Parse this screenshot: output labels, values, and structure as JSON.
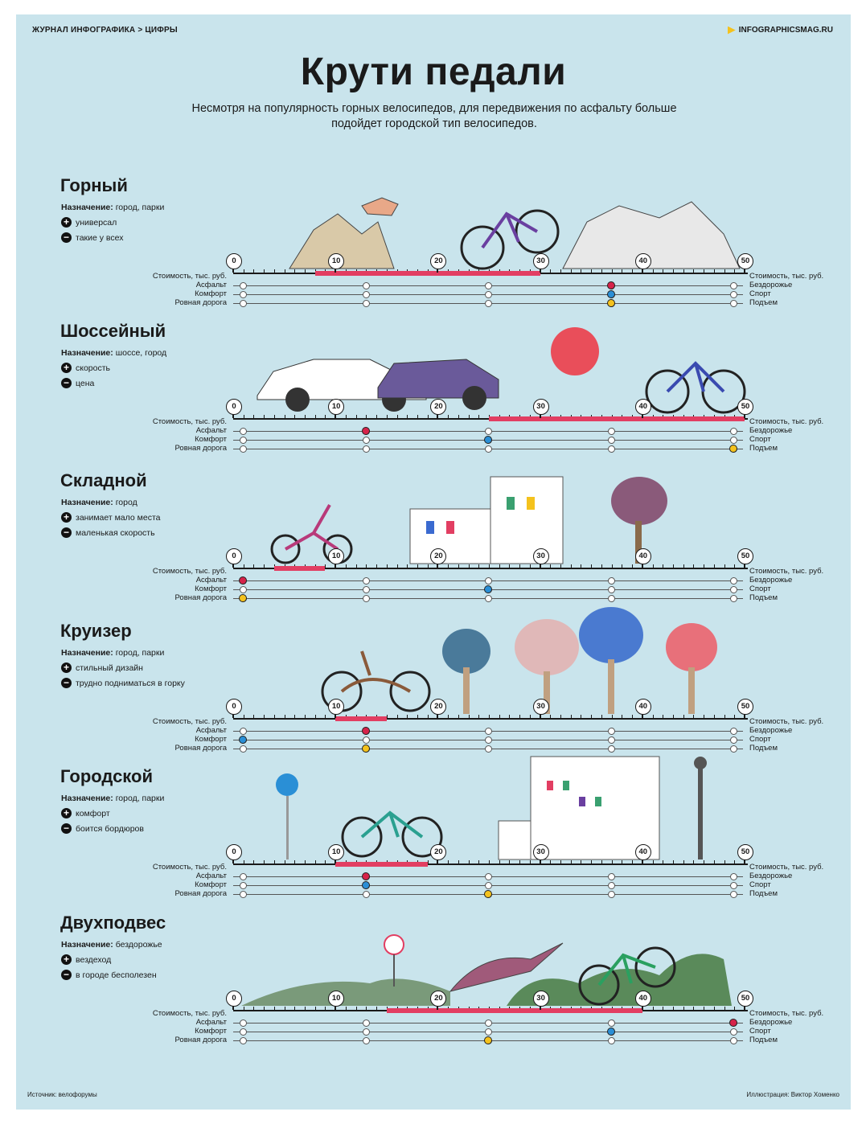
{
  "header": {
    "breadcrumb": "ЖУРНАЛ ИНФОГРАФИКА > ЦИФРЫ",
    "site": "INFOGRAPHICSMAG.RU",
    "title": "Крути педали",
    "subtitle": "Несмотря на популярность горных велосипедов, для передвижения по асфальту больше подойдет городской тип велосипедов."
  },
  "labels": {
    "cost": "Стоимость, тыс. руб.",
    "purpose_prefix": "Назначение:",
    "left_axis": [
      "Асфальт",
      "Комфорт",
      "Ровная дорога"
    ],
    "right_axis": [
      "Бездорожье",
      "Спорт",
      "Подъем"
    ],
    "ticks": [
      "0",
      "10",
      "20",
      "30",
      "40",
      "50"
    ]
  },
  "colors": {
    "background": "#c9e4ec",
    "range": "#e23e62",
    "asphalt_marker": "#d6234a",
    "comfort_marker": "#2a8fd6",
    "road_marker": "#f4c21d"
  },
  "sections": [
    {
      "name": "Горный",
      "purpose": "город, парки",
      "plus": "универсал",
      "minus": "такие у всех",
      "cost_range": [
        8,
        30
      ],
      "markers": [
        0.75,
        0.75,
        0.75
      ]
    },
    {
      "name": "Шоссейный",
      "purpose": "шоссе, город",
      "plus": "скорость",
      "minus": "цена",
      "cost_range": [
        25,
        50
      ],
      "markers": [
        0.25,
        0.5,
        1.0
      ]
    },
    {
      "name": "Складной",
      "purpose": "город",
      "plus": "занимает мало места",
      "minus": "маленькая скорость",
      "cost_range": [
        4,
        9
      ],
      "markers": [
        0.0,
        0.5,
        0.0
      ]
    },
    {
      "name": "Круизер",
      "purpose": "город, парки",
      "plus": "стильный дизайн",
      "minus": "трудно подниматься в горку",
      "cost_range": [
        10,
        15
      ],
      "markers": [
        0.25,
        0.0,
        0.25
      ]
    },
    {
      "name": "Городской",
      "purpose": "город, парки",
      "plus": "комфорт",
      "minus": "боится бордюров",
      "cost_range": [
        10,
        19
      ],
      "markers": [
        0.25,
        0.25,
        0.5
      ]
    },
    {
      "name": "Двухподвес",
      "purpose": "бездорожье",
      "plus": "вездеход",
      "minus": "в городе бесполезен",
      "cost_range": [
        15,
        40
      ],
      "markers": [
        1.0,
        0.75,
        0.5
      ]
    }
  ],
  "footer": {
    "source": "Источник: велофорумы",
    "credit": "Иллюстрация: Виктор Хоменко"
  }
}
